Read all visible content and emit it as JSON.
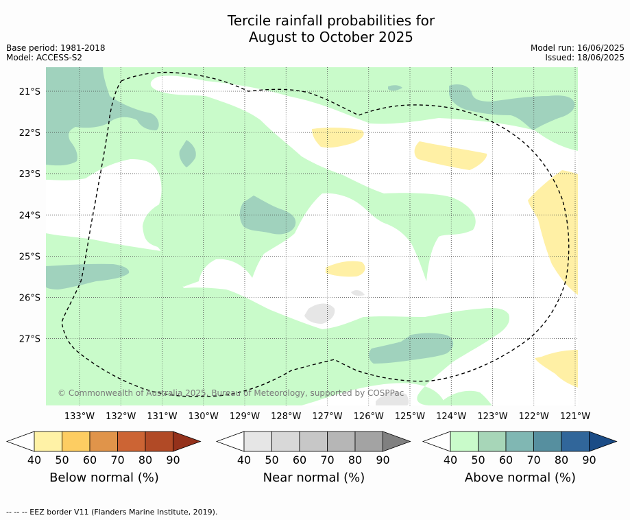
{
  "title_line1": "Tercile rainfall probabilities for",
  "title_line2": "August to October 2025",
  "base_period": "Base period: 1981-2018",
  "model": "Model: ACCESS-S2",
  "model_run": "Model run: 16/06/2025",
  "issued": "Issued: 18/06/2025",
  "copyright": "© Commonwealth of Australia 2025, Bureau of Meteorology, supported by COSPPac",
  "map": {
    "lon_ticks": [
      "133°W",
      "132°W",
      "131°W",
      "130°W",
      "129°W",
      "128°W",
      "127°W",
      "126°W",
      "125°W",
      "124°W",
      "123°W",
      "122°W",
      "121°W"
    ],
    "lat_ticks": [
      "21°S",
      "22°S",
      "23°S",
      "24°S",
      "25°S",
      "26°S",
      "27°S"
    ],
    "gridlines": true
  },
  "colorbars": [
    {
      "label": "Below normal (%)",
      "ticks": [
        "40",
        "50",
        "60",
        "70",
        "80",
        "90"
      ],
      "colors": [
        "#ffffff",
        "#fff2a6",
        "#fdcd62",
        "#e0944a",
        "#cc6434",
        "#b14a26",
        "#94311b"
      ]
    },
    {
      "label": "Near normal (%)",
      "ticks": [
        "40",
        "50",
        "60",
        "70",
        "80",
        "90"
      ],
      "colors": [
        "#ffffff",
        "#e6e6e6",
        "#d8d8d8",
        "#c7c7c7",
        "#b6b6b6",
        "#a3a3a3",
        "#808080"
      ]
    },
    {
      "label": "Above normal (%)",
      "ticks": [
        "40",
        "50",
        "60",
        "70",
        "80",
        "90"
      ],
      "colors": [
        "#ffffff",
        "#c9fbca",
        "#a7d6b8",
        "#80b7b3",
        "#568f9f",
        "#31669a",
        "#1b4c86"
      ]
    }
  ],
  "colors": {
    "above_50": "#c9fbca",
    "above_60": "#a0d2bd",
    "below_50": "#fff0a5",
    "near_50": "#e6e6e6"
  },
  "footer": "--  --  -- EEZ border V11 (Flanders Marine Institute, 2019)."
}
